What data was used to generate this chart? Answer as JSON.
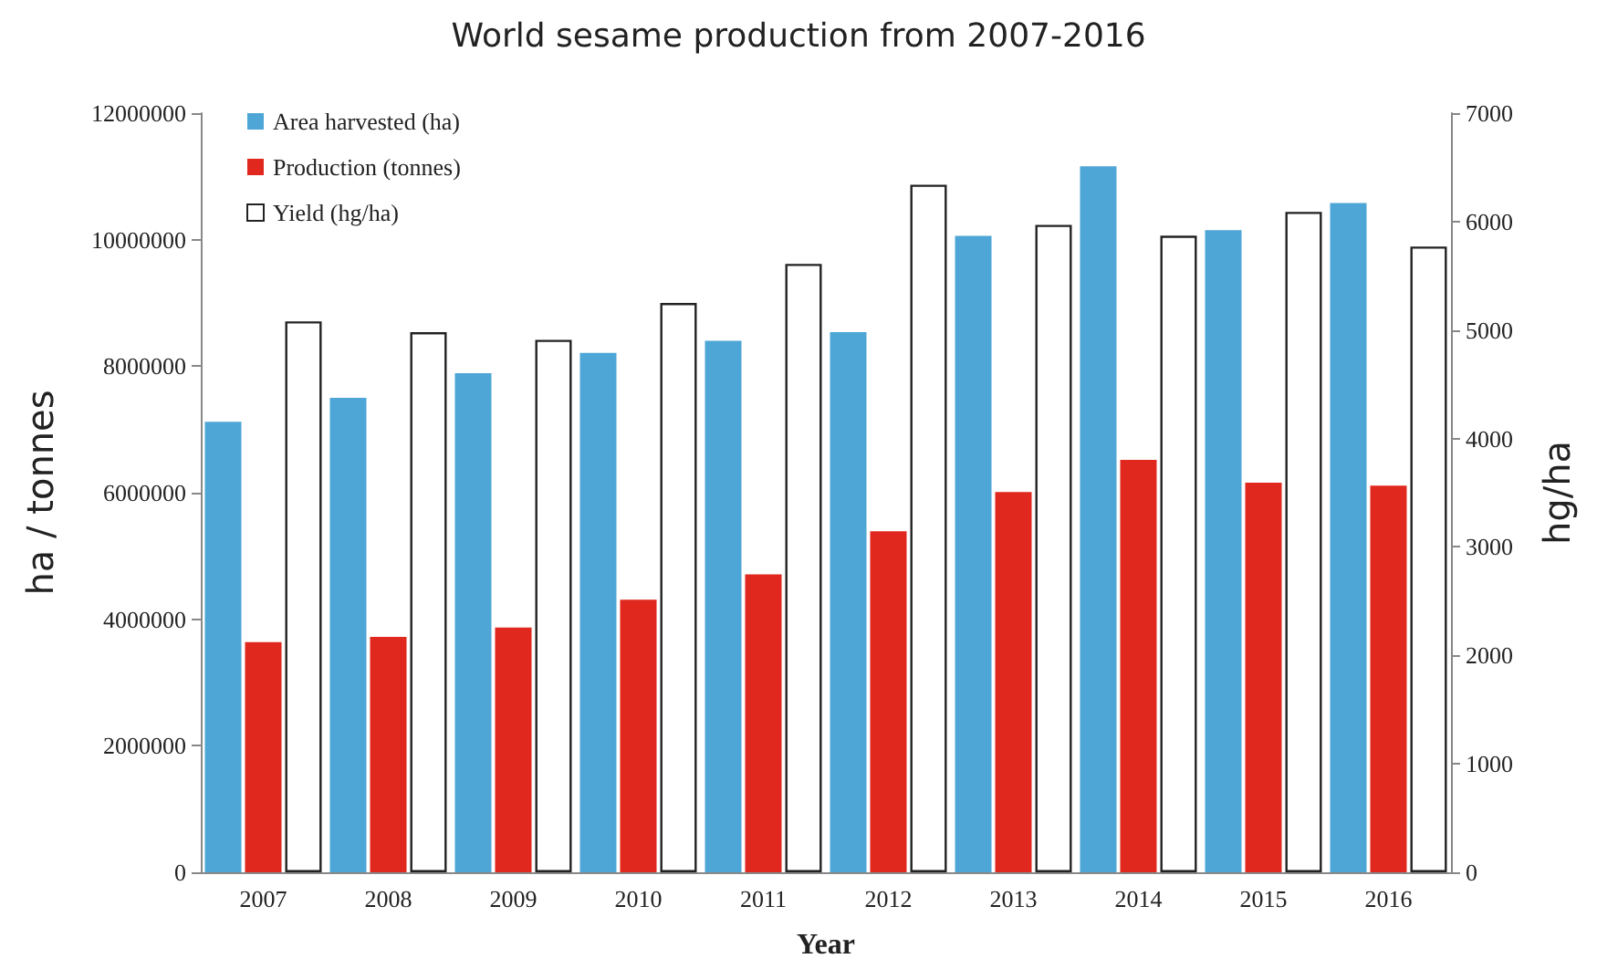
{
  "chart_data": {
    "type": "bar",
    "title": "World sesame production from 2007-2016",
    "xlabel": "Year",
    "ylabel": "ha / tonnes",
    "y2label": "hg/ha",
    "categories": [
      "2007",
      "2008",
      "2009",
      "2010",
      "2011",
      "2012",
      "2013",
      "2014",
      "2015",
      "2016"
    ],
    "series": [
      {
        "name": "Area harvested (ha)",
        "color": "#4ea6d6",
        "values": [
          7120000,
          7500000,
          7890000,
          8210000,
          8400000,
          8540000,
          10060000,
          11160000,
          10150000,
          10580000
        ]
      },
      {
        "name": "Production (tonnes)",
        "color": "#e0281f",
        "values": [
          3640000,
          3720000,
          3870000,
          4310000,
          4710000,
          5390000,
          6010000,
          6520000,
          6160000,
          6110000
        ]
      },
      {
        "name": "Yield (hg/ha)",
        "color": "#ffffff",
        "axis": "y2",
        "values": [
          5080,
          4980,
          4910,
          5250,
          5610,
          6340,
          5970,
          5870,
          6090,
          5770
        ]
      }
    ],
    "ylim": [
      0,
      12000000
    ],
    "yticks": [
      0,
      2000000,
      4000000,
      6000000,
      8000000,
      10000000,
      12000000
    ],
    "y2lim": [
      0,
      7000
    ],
    "y2ticks": [
      0,
      1000,
      2000,
      3000,
      4000,
      5000,
      6000,
      7000
    ],
    "grid": false,
    "legend": "top left"
  }
}
